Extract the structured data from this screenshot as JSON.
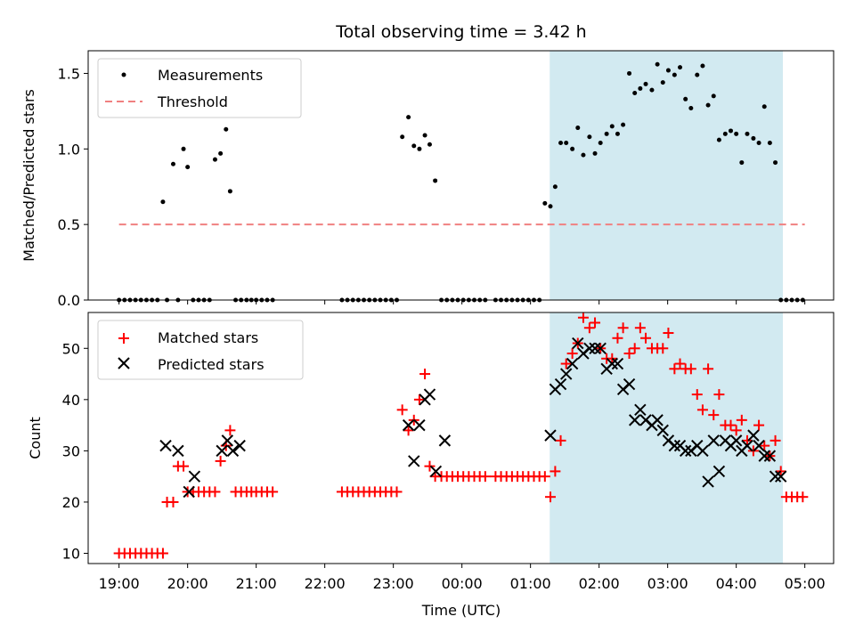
{
  "chart_data": {
    "title": "Total observing time = 3.42 h",
    "xlabel": "Time (UTC)",
    "x_ticks": [
      "19:00",
      "20:00",
      "21:00",
      "22:00",
      "23:00",
      "00:00",
      "01:00",
      "02:00",
      "03:00",
      "04:00",
      "05:00"
    ],
    "x_ticks_hours": [
      19,
      20,
      21,
      22,
      23,
      24,
      25,
      26,
      27,
      28,
      29
    ],
    "xlim_hours": [
      18.55,
      29.42
    ],
    "shaded_span_hours": [
      25.28,
      28.68
    ],
    "shaded_color": "#add8e6",
    "panels": [
      {
        "type": "scatter",
        "ylabel": "Matched/Predicted stars",
        "ylim": [
          0,
          1.65
        ],
        "yticks": [
          0.0,
          0.5,
          1.0,
          1.5
        ],
        "ytick_labels": [
          "0.0",
          "0.5",
          "1.0",
          "1.5"
        ],
        "legend": {
          "position": "upper-left",
          "entries": [
            "Measurements",
            "Threshold"
          ]
        },
        "series": [
          {
            "name": "Measurements",
            "marker": "dot",
            "color": "#000000",
            "x": [
              19.0,
              19.08,
              19.16,
              19.24,
              19.32,
              19.4,
              19.48,
              19.56,
              19.64,
              19.7,
              19.79,
              19.86,
              19.94,
              20.0,
              20.08,
              20.16,
              20.24,
              20.32,
              20.4,
              20.48,
              20.56,
              20.62,
              20.7,
              20.78,
              20.86,
              20.93,
              21.0,
              21.08,
              21.16,
              21.24,
              22.25,
              22.33,
              22.41,
              22.49,
              22.57,
              22.65,
              22.73,
              22.81,
              22.89,
              22.97,
              23.05,
              23.13,
              23.22,
              23.3,
              23.38,
              23.46,
              23.53,
              23.61,
              23.7,
              23.78,
              23.86,
              23.94,
              24.02,
              24.1,
              24.18,
              24.26,
              24.34,
              24.49,
              24.57,
              24.65,
              24.73,
              24.81,
              24.89,
              24.97,
              25.05,
              25.13,
              25.21,
              25.29,
              25.36,
              25.44,
              25.52,
              25.61,
              25.69,
              25.77,
              25.86,
              25.94,
              26.02,
              26.11,
              26.19,
              26.27,
              26.35,
              26.44,
              26.52,
              26.6,
              26.68,
              26.77,
              26.85,
              26.93,
              27.01,
              27.1,
              27.18,
              27.26,
              27.34,
              27.43,
              27.51,
              27.59,
              27.67,
              27.75,
              27.84,
              27.92,
              28.0,
              28.08,
              28.16,
              28.25,
              28.33,
              28.41,
              28.49,
              28.57,
              28.65,
              28.73,
              28.81,
              28.89,
              28.97
            ],
            "y": [
              0,
              0,
              0,
              0,
              0,
              0,
              0,
              0,
              0.65,
              0,
              0.9,
              0,
              1.0,
              0.88,
              0,
              0,
              0,
              0,
              0.93,
              0.97,
              1.13,
              0.72,
              0,
              0,
              0,
              0,
              0,
              0,
              0,
              0,
              0,
              0,
              0,
              0,
              0,
              0,
              0,
              0,
              0,
              0,
              0,
              1.08,
              1.21,
              1.02,
              1.0,
              1.09,
              1.03,
              0.79,
              0,
              0,
              0,
              0,
              0,
              0,
              0,
              0,
              0,
              0,
              0,
              0,
              0,
              0,
              0,
              0,
              0,
              0,
              0.64,
              0.62,
              0.75,
              1.04,
              1.04,
              1.0,
              1.14,
              0.96,
              1.08,
              0.97,
              1.04,
              1.1,
              1.15,
              1.1,
              1.16,
              1.5,
              1.37,
              1.4,
              1.43,
              1.39,
              1.56,
              1.44,
              1.52,
              1.49,
              1.54,
              1.33,
              1.27,
              1.49,
              1.55,
              1.29,
              1.35,
              1.06,
              1.1,
              1.12,
              1.1,
              0.91,
              1.1,
              1.07,
              1.04,
              1.28,
              1.04,
              0.91,
              0,
              0,
              0,
              0,
              0
            ]
          },
          {
            "name": "Threshold",
            "marker": "dashed-line",
            "color": "#f08080",
            "x": [
              19.0,
              29.0
            ],
            "y": [
              0.5,
              0.5
            ]
          }
        ]
      },
      {
        "type": "scatter",
        "ylabel": "Count",
        "ylim": [
          8,
          57
        ],
        "yticks": [
          10,
          20,
          30,
          40,
          50
        ],
        "ytick_labels": [
          "10",
          "20",
          "30",
          "40",
          "50"
        ],
        "legend": {
          "position": "upper-left",
          "entries": [
            "Matched stars",
            "Predicted stars"
          ]
        },
        "series": [
          {
            "name": "Matched stars",
            "marker": "plus",
            "color": "#ff0000",
            "x": [
              19.0,
              19.08,
              19.16,
              19.24,
              19.32,
              19.4,
              19.48,
              19.56,
              19.64,
              19.7,
              19.79,
              19.86,
              19.94,
              20.0,
              20.08,
              20.16,
              20.24,
              20.32,
              20.4,
              20.48,
              20.56,
              20.62,
              20.7,
              20.78,
              20.86,
              20.93,
              21.0,
              21.08,
              21.16,
              21.24,
              22.25,
              22.33,
              22.41,
              22.49,
              22.57,
              22.65,
              22.73,
              22.81,
              22.89,
              22.97,
              23.05,
              23.13,
              23.22,
              23.3,
              23.38,
              23.46,
              23.53,
              23.61,
              23.7,
              23.78,
              23.86,
              23.94,
              24.02,
              24.1,
              24.18,
              24.26,
              24.34,
              24.49,
              24.57,
              24.65,
              24.73,
              24.81,
              24.89,
              24.97,
              25.05,
              25.13,
              25.21,
              25.29,
              25.36,
              25.44,
              25.52,
              25.61,
              25.69,
              25.77,
              25.86,
              25.94,
              26.02,
              26.11,
              26.19,
              26.27,
              26.35,
              26.44,
              26.52,
              26.6,
              26.68,
              26.77,
              26.85,
              26.93,
              27.01,
              27.1,
              27.18,
              27.26,
              27.34,
              27.43,
              27.51,
              27.59,
              27.67,
              27.75,
              27.84,
              27.92,
              28.0,
              28.08,
              28.16,
              28.25,
              28.33,
              28.41,
              28.49,
              28.57,
              28.65,
              28.73,
              28.81,
              28.89,
              28.97
            ],
            "y": [
              10,
              10,
              10,
              10,
              10,
              10,
              10,
              10,
              10,
              20,
              20,
              27,
              27,
              22,
              22,
              22,
              22,
              22,
              22,
              28,
              31,
              34,
              22,
              22,
              22,
              22,
              22,
              22,
              22,
              22,
              22,
              22,
              22,
              22,
              22,
              22,
              22,
              22,
              22,
              22,
              22,
              38,
              34,
              36,
              40,
              45,
              27,
              25,
              25,
              25,
              25,
              25,
              25,
              25,
              25,
              25,
              25,
              25,
              25,
              25,
              25,
              25,
              25,
              25,
              25,
              25,
              25,
              21,
              26,
              32,
              47,
              49,
              51,
              56,
              54,
              55,
              50,
              48,
              48,
              52,
              54,
              49,
              50,
              54,
              52,
              50,
              50,
              50,
              53,
              46,
              47,
              46,
              46,
              41,
              38,
              46,
              37,
              41,
              35,
              35,
              34,
              36,
              32,
              30,
              35,
              31,
              29,
              32,
              26,
              21,
              21,
              21,
              21
            ]
          },
          {
            "name": "Predicted stars",
            "marker": "x",
            "color": "#000000",
            "x": [
              19.68,
              19.86,
              20.02,
              20.1,
              20.5,
              20.58,
              20.66,
              20.76,
              23.22,
              23.3,
              23.38,
              23.46,
              23.53,
              23.62,
              23.75,
              25.29,
              25.36,
              25.44,
              25.52,
              25.61,
              25.69,
              25.77,
              25.86,
              25.94,
              26.02,
              26.11,
              26.19,
              26.27,
              26.35,
              26.44,
              26.52,
              26.6,
              26.68,
              26.77,
              26.85,
              26.93,
              27.01,
              27.1,
              27.18,
              27.26,
              27.34,
              27.43,
              27.51,
              27.59,
              27.67,
              27.75,
              27.84,
              27.92,
              28.0,
              28.08,
              28.16,
              28.25,
              28.33,
              28.41,
              28.49,
              28.57,
              28.65
            ],
            "y": [
              31,
              30,
              22,
              25,
              30,
              32,
              30,
              31,
              35,
              28,
              35,
              40,
              41,
              26,
              32,
              33,
              42,
              43,
              45,
              47,
              51,
              49,
              50,
              50,
              50,
              46,
              47,
              47,
              42,
              43,
              36,
              38,
              36,
              35,
              36,
              34,
              32,
              31,
              31,
              30,
              30,
              31,
              30,
              24,
              32,
              26,
              32,
              31,
              32,
              30,
              31,
              33,
              31,
              29,
              29,
              25,
              25
            ]
          }
        ]
      }
    ]
  }
}
